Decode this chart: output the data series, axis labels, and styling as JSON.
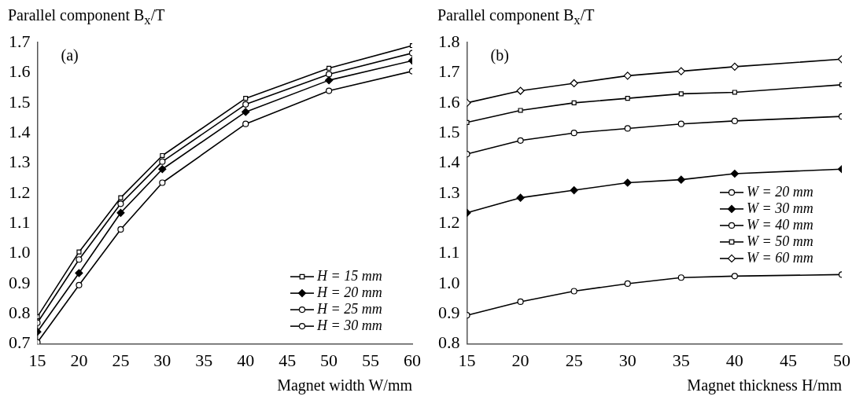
{
  "chart_data": [
    {
      "type": "line",
      "ylabel": "Parallel component B$_{x}$/T",
      "xlabel": "Magnet width W/mm",
      "annotations": [
        "(a)"
      ],
      "x": [
        15,
        20,
        25,
        30,
        40,
        50,
        60
      ],
      "xlim": [
        15,
        60
      ],
      "xticks": [
        15,
        20,
        25,
        30,
        35,
        40,
        45,
        50,
        55,
        60
      ],
      "ylim": [
        0.7,
        1.7
      ],
      "yticks": [
        0.7,
        0.8,
        0.9,
        {
          "value": 1,
          "label": "1.0"
        },
        1.1,
        1.2,
        1.3,
        1.4,
        1.5,
        1.6,
        1.7
      ],
      "grid": false,
      "legend": "bottom right",
      "line_style": "solid",
      "series": [
        {
          "name": "H = 15 mm",
          "color": "#000000",
          "marker": "square",
          "values": [
            0.79,
            1.005,
            1.185,
            1.325,
            1.515,
            1.615,
            1.69
          ]
        },
        {
          "name": "H = 20 mm",
          "color": "#000000",
          "marker": "diamond",
          "values": [
            0.74,
            0.935,
            1.135,
            1.28,
            1.47,
            1.575,
            1.64
          ]
        },
        {
          "name": "H = 25 mm",
          "color": "#000000",
          "marker": "circle",
          "values": [
            0.77,
            0.98,
            1.165,
            1.305,
            1.495,
            1.595,
            1.665
          ]
        },
        {
          "name": "H = 30 mm",
          "color": "#000000",
          "marker": "circle",
          "values": [
            0.705,
            0.895,
            1.08,
            1.235,
            1.43,
            1.54,
            1.605
          ]
        }
      ]
    },
    {
      "type": "line",
      "ylabel": "Parallel component B$_{x}$/T",
      "xlabel": "Magnet thickness H/mm",
      "annotations": [
        "(b)"
      ],
      "x": [
        15,
        20,
        25,
        30,
        35,
        40,
        50
      ],
      "xlim": [
        15,
        50
      ],
      "xticks": [
        15,
        20,
        25,
        30,
        35,
        40,
        45,
        50
      ],
      "ylim": [
        0.8,
        1.8
      ],
      "yticks": [
        0.8,
        0.9,
        {
          "value": 1,
          "label": "1.0"
        },
        1.1,
        1.2,
        1.3,
        1.4,
        1.5,
        1.6,
        1.7,
        1.8
      ],
      "grid": false,
      "legend": "right",
      "line_style": "solid",
      "series": [
        {
          "name": "W = 20 mm",
          "color": "#000000",
          "marker": "circle",
          "values": [
            0.895,
            0.94,
            0.975,
            1.0,
            1.02,
            1.025,
            1.03
          ]
        },
        {
          "name": "W = 30 mm",
          "color": "#000000",
          "marker": "diamond",
          "values": [
            1.235,
            1.285,
            1.31,
            1.335,
            1.345,
            1.365,
            1.38
          ]
        },
        {
          "name": "W = 40 mm",
          "color": "#000000",
          "marker": "circle",
          "values": [
            1.43,
            1.475,
            1.5,
            1.515,
            1.53,
            1.54,
            1.555
          ]
        },
        {
          "name": "W = 50 mm",
          "color": "#000000",
          "marker": "square",
          "values": [
            1.535,
            1.575,
            1.6,
            1.615,
            1.63,
            1.635,
            1.66
          ]
        },
        {
          "name": "W = 60 mm",
          "color": "#000000",
          "marker": "diamond",
          "values": [
            1.6,
            1.64,
            1.665,
            1.69,
            1.705,
            1.72,
            1.745
          ]
        }
      ]
    }
  ]
}
